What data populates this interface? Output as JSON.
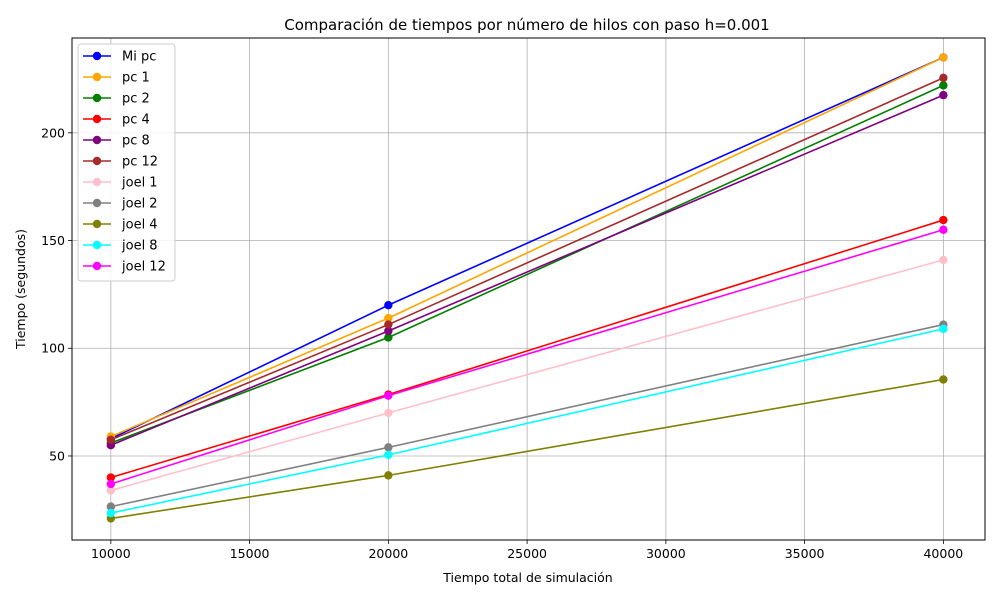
{
  "chart_data": {
    "type": "line",
    "title": "Comparación de tiempos por número de hilos con paso h=0.001",
    "xlabel": "Tiempo total de simulación",
    "ylabel": "Tiempo (segundos)",
    "xlim": [
      8600,
      41500
    ],
    "ylim": [
      11,
      244
    ],
    "xticks": [
      10000,
      15000,
      20000,
      25000,
      30000,
      35000,
      40000
    ],
    "yticks": [
      50,
      100,
      150,
      200
    ],
    "grid": true,
    "legend_position": "top-left",
    "x": [
      10000,
      20000,
      40000
    ],
    "series": [
      {
        "name": "Mi pc",
        "color": "#0000ff",
        "values": [
          58,
          120,
          235
        ]
      },
      {
        "name": "pc 1",
        "color": "#ffa500",
        "values": [
          59,
          114,
          235
        ]
      },
      {
        "name": "pc 2",
        "color": "#008000",
        "values": [
          56,
          105,
          222
        ]
      },
      {
        "name": "pc 4",
        "color": "#ff0000",
        "values": [
          40,
          78.5,
          159.5
        ]
      },
      {
        "name": "pc 8",
        "color": "#800080",
        "values": [
          55,
          108,
          217.5
        ]
      },
      {
        "name": "pc 12",
        "color": "#a52a2a",
        "values": [
          57.5,
          111,
          225.5
        ]
      },
      {
        "name": "joel 1",
        "color": "#ffc0cb",
        "values": [
          34,
          70,
          141
        ]
      },
      {
        "name": "joel 2",
        "color": "#808080",
        "values": [
          26.5,
          54,
          111
        ]
      },
      {
        "name": "joel 4",
        "color": "#808000",
        "values": [
          21,
          41,
          85.5
        ]
      },
      {
        "name": "joel 8",
        "color": "#00ffff",
        "values": [
          23.5,
          50.5,
          109
        ]
      },
      {
        "name": "joel 12",
        "color": "#ff00ff",
        "values": [
          37,
          78,
          155
        ]
      }
    ]
  }
}
